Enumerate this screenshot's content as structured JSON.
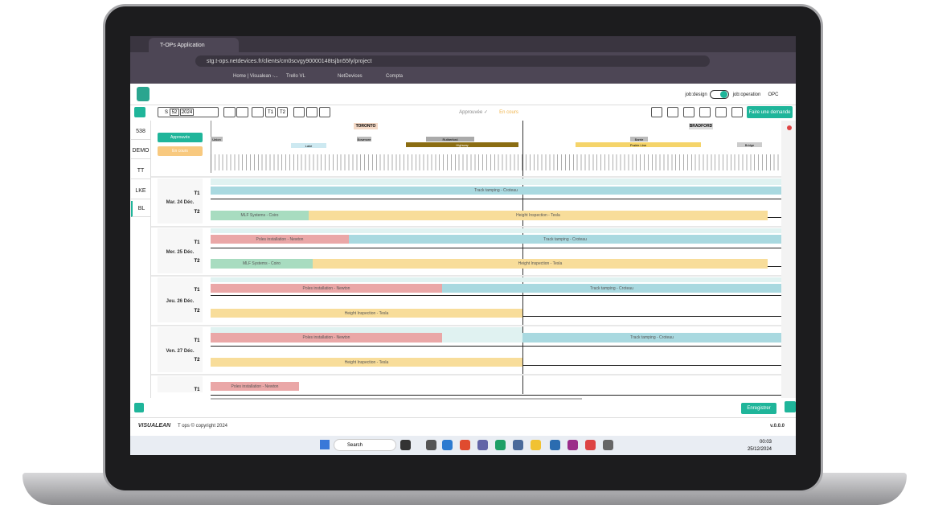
{
  "browser": {
    "tab_title": "T-OPs Application",
    "url": "stg.t-ops.netdevices.fr/clients/cm0scvgy90000148tsjbn55fy/project",
    "bookmarks": [
      "Home | Visualean -...",
      "Trello VL",
      "NetDevices",
      "Compta"
    ]
  },
  "header": {
    "job_design": "job:design",
    "job_operation": "job:operation",
    "user": "OPC"
  },
  "toolbar": {
    "week_prefix": "S",
    "week": "52",
    "year": "2024",
    "t1": "T1",
    "t2": "T2",
    "status_approved": "Approuvée ✓",
    "status_in_progress": "En cours",
    "request_button": "Faire une demande"
  },
  "sidebar": {
    "projects": [
      "538",
      "DEMO",
      "TT",
      "LKE",
      "BL"
    ]
  },
  "legend": {
    "approved": "Approuvés",
    "in_progress": "En cours"
  },
  "timeline": {
    "zones": [
      "TORONTO",
      "BRADFORD"
    ],
    "stations": [
      "Union",
      "Lake",
      "Bowmore",
      "Rutherford",
      "Highway",
      "Barrie",
      "Prairie Line",
      "Bridge"
    ]
  },
  "days": [
    {
      "date": "Mar. 24 Déc.",
      "shifts": [
        "T1",
        "T2"
      ],
      "tasks": [
        "Track tamping - Croteau",
        "MLF Systems - Coiro",
        "Height Inspection - Tesla"
      ]
    },
    {
      "date": "Mer. 25 Déc.",
      "shifts": [
        "T1",
        "T2"
      ],
      "tasks": [
        "Poles installation - Newton",
        "Track tamping - Croteau",
        "MLF Systems - Coiro",
        "Height Inspection - Tesla"
      ]
    },
    {
      "date": "Jeu. 26 Déc.",
      "shifts": [
        "T1",
        "T2"
      ],
      "tasks": [
        "Poles installation - Newton",
        "Track tamping - Croteau",
        "Height Inspection - Tesla"
      ]
    },
    {
      "date": "Ven. 27 Déc.",
      "shifts": [
        "T1",
        "T2"
      ],
      "tasks": [
        "Poles installation - Newton",
        "Track tamping - Croteau",
        "Height Inspection - Tesla"
      ]
    },
    {
      "shifts": [
        "T1"
      ],
      "tasks": [
        "Poles installation - Newton"
      ]
    }
  ],
  "footer": {
    "save": "Enregistrer",
    "brand": "VISUALEAN",
    "copyright": "T ops © copyright 2024",
    "version": "v.0.0.0"
  },
  "taskbar": {
    "search": "Search",
    "time": "00:03",
    "date": "25/12/2024"
  }
}
